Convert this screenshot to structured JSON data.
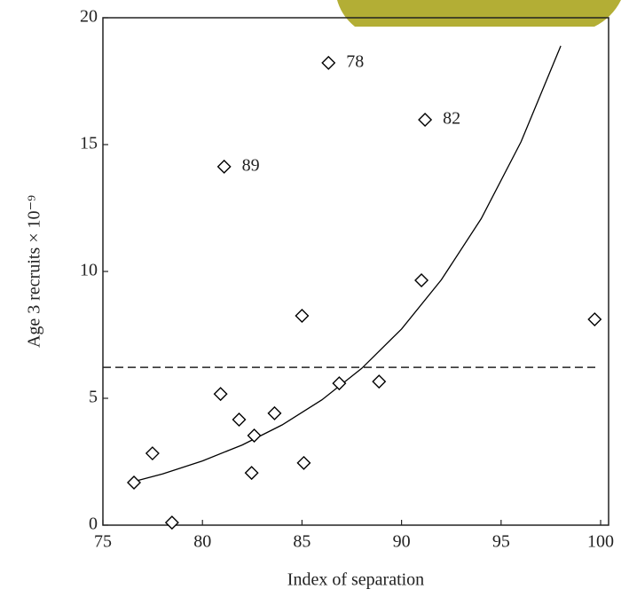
{
  "chart_data": {
    "type": "scatter",
    "x_label": "Index of separation",
    "y_label": "Age 3 recruits × 10⁻⁹",
    "xlim": [
      75,
      100.4
    ],
    "ylim": [
      0,
      20
    ],
    "xticks": [
      75,
      80,
      85,
      90,
      95,
      100
    ],
    "yticks": [
      0,
      5,
      10,
      15,
      20
    ],
    "color": "#000000",
    "points": {
      "x": [
        76.56,
        77.49,
        78.47,
        80.91,
        81.84,
        82.6,
        82.47,
        83.62,
        85.09,
        85.0,
        86.87,
        88.87,
        91.0,
        99.7,
        81.09,
        86.33,
        91.18
      ],
      "y": [
        1.68,
        2.83,
        0.1,
        5.17,
        4.16,
        3.53,
        2.06,
        4.41,
        2.45,
        8.25,
        5.59,
        5.66,
        9.65,
        8.11,
        14.13,
        18.22,
        15.98
      ],
      "labels": [
        null,
        null,
        null,
        null,
        null,
        null,
        null,
        null,
        null,
        null,
        null,
        null,
        null,
        null,
        "89",
        "78",
        "82"
      ]
    },
    "fit": {
      "x": [
        76.5,
        78,
        80,
        82,
        84,
        86,
        88,
        90,
        92,
        94,
        96,
        98
      ],
      "y": [
        1.71,
        2.02,
        2.53,
        3.16,
        3.95,
        4.94,
        6.18,
        7.73,
        9.67,
        12.08,
        15.11,
        18.89
      ]
    },
    "mean_line": 6.22
  }
}
